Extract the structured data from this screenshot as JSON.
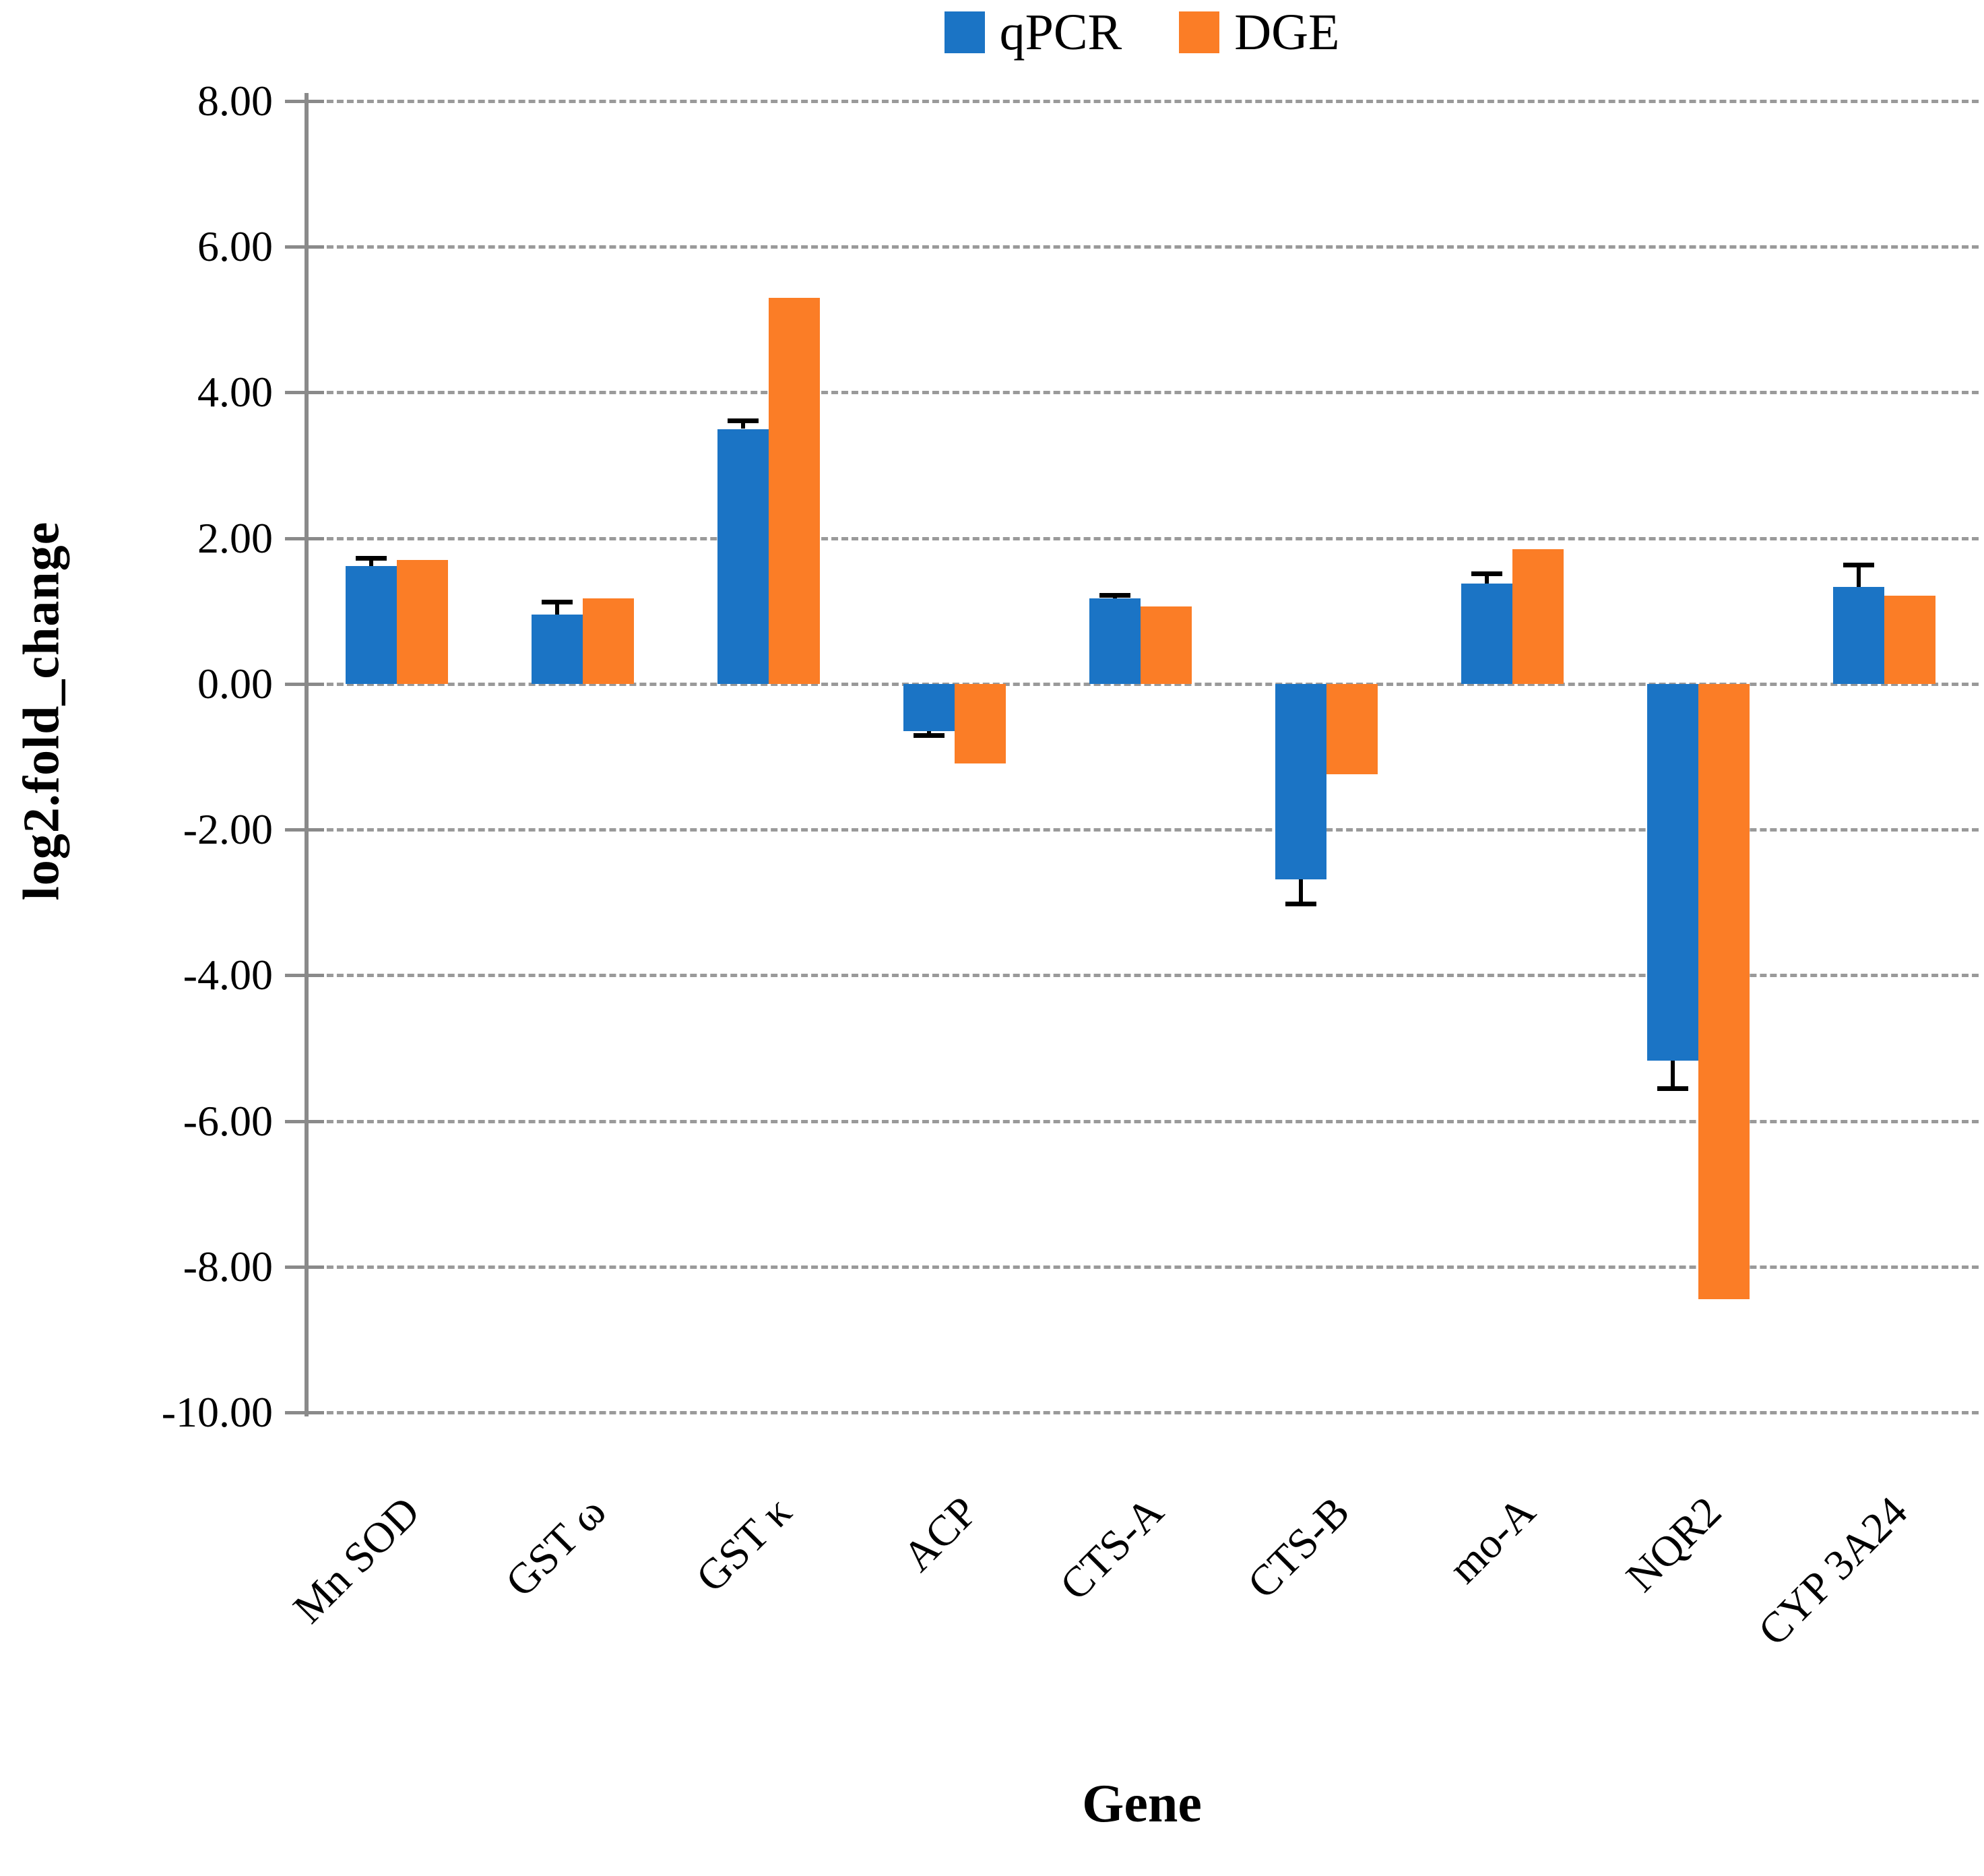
{
  "chart_data": {
    "type": "bar",
    "title": "",
    "categories": [
      "Mn SOD",
      "GST ω",
      "GST κ",
      "ACP",
      "CTS-A",
      "CTS-B",
      "mo-A",
      "NQR2",
      "CYP 3A24"
    ],
    "series": [
      {
        "name": "qPCR",
        "color": "#1B74C5",
        "values": [
          1.62,
          0.95,
          3.5,
          -0.65,
          1.17,
          -2.68,
          1.38,
          -5.17,
          1.33
        ],
        "errors": [
          0.11,
          0.18,
          0.12,
          0.05,
          0.05,
          0.34,
          0.14,
          0.38,
          0.31
        ]
      },
      {
        "name": "DGE",
        "color": "#FB7D26",
        "values": [
          1.7,
          1.17,
          5.3,
          -1.09,
          1.06,
          -1.24,
          1.85,
          -8.45,
          1.21
        ],
        "errors": null
      }
    ],
    "xlabel": "Gene",
    "ylabel": "log2.fold_change",
    "ylim": [
      -10,
      8
    ],
    "ytick_step": 2,
    "ytick_labels": [
      "8.00",
      "6.00",
      "4.00",
      "2.00",
      "0.00",
      "-2.00",
      "-4.00",
      "-6.00",
      "-8.00",
      "-10.00"
    ],
    "grid": true,
    "legend_position": "top",
    "error_bar_color": "#000000",
    "gridline_color": "#9a9a9a"
  }
}
